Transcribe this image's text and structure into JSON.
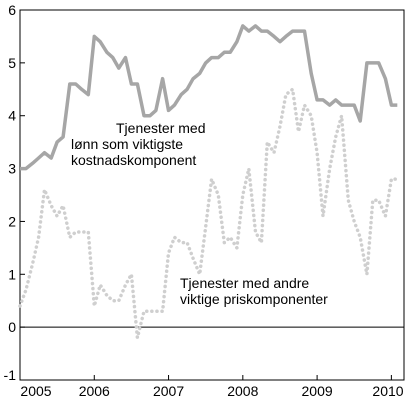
{
  "chart_data": {
    "type": "line",
    "title": "",
    "xlabel": "",
    "ylabel": "",
    "ylim": [
      -1,
      6
    ],
    "yticks": [
      -1,
      0,
      1,
      2,
      3,
      4,
      5,
      6
    ],
    "xlim": [
      2005,
      2010.17
    ],
    "xticks": [
      2005,
      2006,
      2007,
      2008,
      2009,
      2010
    ],
    "grid": false,
    "series": [
      {
        "name": "Tjenester med lønn som viktigste kostnadskomponent",
        "color": "#a6a6a6",
        "style": "solid",
        "x": [
          2005.0,
          2005.08,
          2005.17,
          2005.25,
          2005.33,
          2005.42,
          2005.5,
          2005.58,
          2005.67,
          2005.75,
          2005.83,
          2005.92,
          2006.0,
          2006.08,
          2006.17,
          2006.25,
          2006.33,
          2006.42,
          2006.5,
          2006.58,
          2006.67,
          2006.75,
          2006.83,
          2006.92,
          2007.0,
          2007.08,
          2007.17,
          2007.25,
          2007.33,
          2007.42,
          2007.5,
          2007.58,
          2007.67,
          2007.75,
          2007.83,
          2007.92,
          2008.0,
          2008.08,
          2008.17,
          2008.25,
          2008.33,
          2008.42,
          2008.5,
          2008.58,
          2008.67,
          2008.75,
          2008.83,
          2008.92,
          2009.0,
          2009.08,
          2009.17,
          2009.25,
          2009.33,
          2009.42,
          2009.5,
          2009.58,
          2009.67,
          2009.75,
          2009.83,
          2009.92,
          2010.0,
          2010.08
        ],
        "values": [
          3.0,
          3.0,
          3.1,
          3.2,
          3.3,
          3.2,
          3.5,
          3.6,
          4.6,
          4.6,
          4.5,
          4.4,
          5.5,
          5.4,
          5.2,
          5.1,
          4.9,
          5.1,
          4.6,
          4.6,
          4.0,
          4.0,
          4.1,
          4.7,
          4.1,
          4.2,
          4.4,
          4.5,
          4.7,
          4.8,
          5.0,
          5.1,
          5.1,
          5.2,
          5.2,
          5.4,
          5.7,
          5.6,
          5.7,
          5.6,
          5.6,
          5.5,
          5.4,
          5.5,
          5.6,
          5.6,
          5.6,
          4.8,
          4.3,
          4.3,
          4.2,
          4.3,
          4.2,
          4.2,
          4.2,
          3.9,
          5.0,
          5.0,
          5.0,
          4.7,
          4.2,
          4.2
        ]
      },
      {
        "name": "Tjenester med andre viktige priskomponenter",
        "color": "#cfcfcf",
        "style": "dotted",
        "x": [
          2005.0,
          2005.08,
          2005.17,
          2005.25,
          2005.33,
          2005.42,
          2005.5,
          2005.58,
          2005.67,
          2005.75,
          2005.83,
          2005.92,
          2006.0,
          2006.08,
          2006.17,
          2006.25,
          2006.33,
          2006.42,
          2006.5,
          2006.58,
          2006.67,
          2006.75,
          2006.83,
          2006.92,
          2007.0,
          2007.08,
          2007.17,
          2007.25,
          2007.33,
          2007.42,
          2007.5,
          2007.58,
          2007.67,
          2007.75,
          2007.83,
          2007.92,
          2008.0,
          2008.08,
          2008.17,
          2008.25,
          2008.33,
          2008.42,
          2008.5,
          2008.58,
          2008.67,
          2008.75,
          2008.83,
          2008.92,
          2009.0,
          2009.08,
          2009.17,
          2009.25,
          2009.33,
          2009.42,
          2009.5,
          2009.58,
          2009.67,
          2009.75,
          2009.83,
          2009.92,
          2010.0,
          2010.08
        ],
        "values": [
          0.4,
          0.7,
          1.2,
          1.7,
          2.6,
          2.3,
          2.1,
          2.3,
          1.7,
          1.8,
          1.8,
          1.8,
          0.4,
          0.8,
          0.6,
          0.5,
          0.5,
          0.8,
          1.0,
          -0.2,
          0.3,
          0.3,
          0.3,
          0.3,
          1.4,
          1.7,
          1.6,
          1.6,
          1.3,
          1.0,
          1.9,
          2.8,
          2.5,
          1.6,
          1.7,
          1.5,
          2.5,
          3.0,
          1.8,
          1.6,
          3.5,
          3.3,
          3.8,
          4.4,
          4.5,
          3.7,
          4.2,
          4.0,
          3.3,
          2.1,
          3.0,
          3.6,
          4.0,
          2.4,
          2.0,
          1.7,
          1.0,
          2.4,
          2.4,
          2.1,
          2.8,
          2.8
        ]
      }
    ],
    "annotations": [
      {
        "lines": [
          "Tjenester med",
          "lønn som viktigste",
          "kostnadskomponent"
        ]
      },
      {
        "lines": [
          "Tjenester med andre",
          "viktige priskomponenter"
        ]
      }
    ]
  }
}
